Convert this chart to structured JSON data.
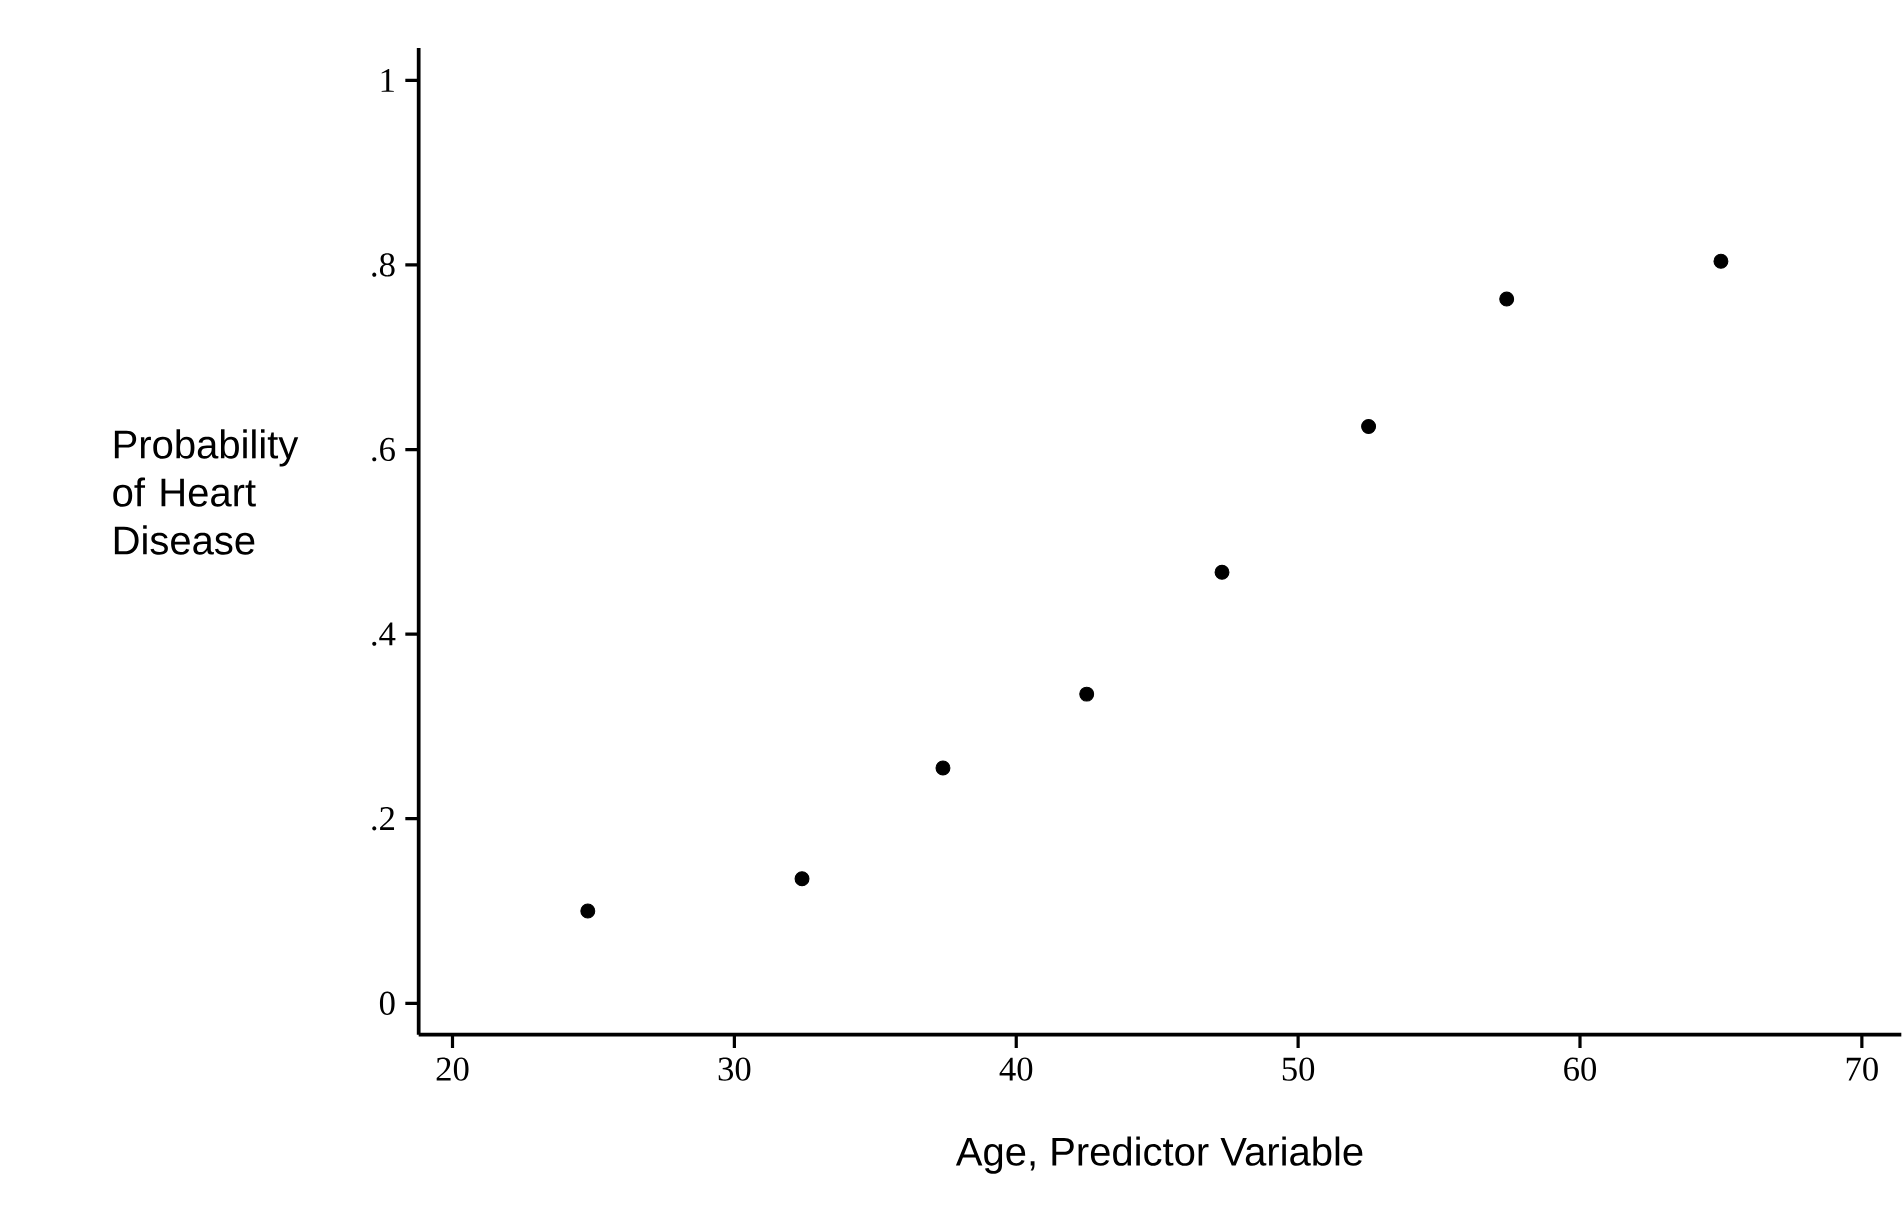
{
  "chart_data": {
    "type": "scatter",
    "xlabel": "Age, Predictor Variable",
    "ylabel": "Probability of Heart Disease",
    "x": [
      24.8,
      32.4,
      37.4,
      42.5,
      47.3,
      52.5,
      57.4,
      65.0
    ],
    "values": [
      0.1,
      0.135,
      0.255,
      0.335,
      0.467,
      0.625,
      0.763,
      0.804
    ],
    "color": "#000000",
    "marker": "circle",
    "xlim": [
      18.8,
      71.4
    ],
    "ylim": [
      -0.034,
      1.035
    ],
    "xticks": [
      20,
      30,
      40,
      50,
      60,
      70
    ],
    "yticks": [
      0,
      {
        "value": 0.2,
        "label": ".2"
      },
      {
        "value": 0.4,
        "label": ".4"
      },
      {
        "value": 0.6,
        "label": ".6"
      },
      {
        "value": 0.8,
        "label": ".8"
      },
      1
    ],
    "grid": false
  }
}
